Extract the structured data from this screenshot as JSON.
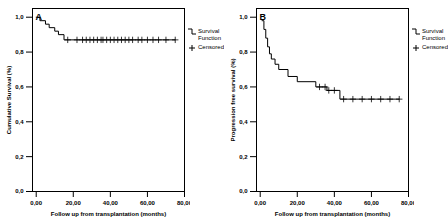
{
  "chart_data": [
    {
      "type": "line",
      "title": "A",
      "xlabel": "Follow up from transplantation (months)",
      "ylabel": "Cumulative Survival (%)",
      "xlim": [
        -2,
        80
      ],
      "xticks": [
        {
          "value": 0,
          "label": "0,00"
        },
        {
          "value": 20,
          "label": "20,00"
        },
        {
          "value": 40,
          "label": "40,00"
        },
        {
          "value": 60,
          "label": "60,00"
        },
        {
          "value": 80,
          "label": "80,00"
        }
      ],
      "ylim": [
        0,
        1.05
      ],
      "yticks": [
        {
          "value": 0,
          "label": "0,0"
        },
        {
          "value": 0.2,
          "label": "0,2"
        },
        {
          "value": 0.4,
          "label": "0,4"
        },
        {
          "value": 0.6,
          "label": "0,6"
        },
        {
          "value": 0.8,
          "label": "0,8"
        },
        {
          "value": 1.0,
          "label": "1,0"
        }
      ],
      "grid": false,
      "legend": "right",
      "series": [
        {
          "name": "Survival Function",
          "color": "#000000",
          "line_style": "steps",
          "x": [
            0,
            2,
            5,
            7,
            10,
            12,
            15,
            75
          ],
          "values": [
            1.0,
            0.98,
            0.96,
            0.94,
            0.92,
            0.9,
            0.87,
            0.87
          ]
        },
        {
          "name": "Censored",
          "color": "#000000",
          "type": "scatter",
          "marker": "plus",
          "x": [
            17,
            22,
            25,
            27,
            29,
            31,
            33,
            35,
            36,
            38,
            40,
            42,
            44,
            46,
            48,
            50,
            52,
            55,
            57,
            60,
            63,
            66,
            70,
            75
          ],
          "values": [
            0.87,
            0.87,
            0.87,
            0.87,
            0.87,
            0.87,
            0.87,
            0.87,
            0.87,
            0.87,
            0.87,
            0.87,
            0.87,
            0.87,
            0.87,
            0.87,
            0.87,
            0.87,
            0.87,
            0.87,
            0.87,
            0.87,
            0.87,
            0.87
          ]
        }
      ]
    },
    {
      "type": "line",
      "title": "B",
      "xlabel": "Follow up from transplantation (months)",
      "ylabel": "Progression free survival (%)",
      "xlim": [
        -2,
        80
      ],
      "xticks": [
        {
          "value": 0,
          "label": "0,00"
        },
        {
          "value": 20,
          "label": "20,00"
        },
        {
          "value": 40,
          "label": "40,00"
        },
        {
          "value": 60,
          "label": "60,00"
        },
        {
          "value": 80,
          "label": "80,00"
        }
      ],
      "ylim": [
        0,
        1.05
      ],
      "yticks": [
        {
          "value": 0,
          "label": "0,0"
        },
        {
          "value": 0.2,
          "label": "0,2"
        },
        {
          "value": 0.4,
          "label": "0,4"
        },
        {
          "value": 0.6,
          "label": "0,6"
        },
        {
          "value": 0.8,
          "label": "0,8"
        },
        {
          "value": 1.0,
          "label": "1,0"
        }
      ],
      "grid": false,
      "legend": "right",
      "series": [
        {
          "name": "Survival Function",
          "color": "#000000",
          "line_style": "steps",
          "x": [
            1,
            2,
            3,
            4,
            5,
            6,
            8,
            10,
            15,
            20,
            30,
            36,
            43,
            75
          ],
          "values": [
            0.98,
            0.93,
            0.88,
            0.83,
            0.79,
            0.76,
            0.73,
            0.7,
            0.66,
            0.63,
            0.6,
            0.58,
            0.53,
            0.53
          ]
        },
        {
          "name": "Censored",
          "color": "#000000",
          "type": "scatter",
          "marker": "plus",
          "x": [
            32,
            35,
            37,
            40,
            45,
            50,
            55,
            60,
            65,
            70,
            75
          ],
          "values": [
            0.6,
            0.6,
            0.58,
            0.58,
            0.53,
            0.53,
            0.53,
            0.53,
            0.53,
            0.53,
            0.53
          ]
        }
      ]
    }
  ]
}
